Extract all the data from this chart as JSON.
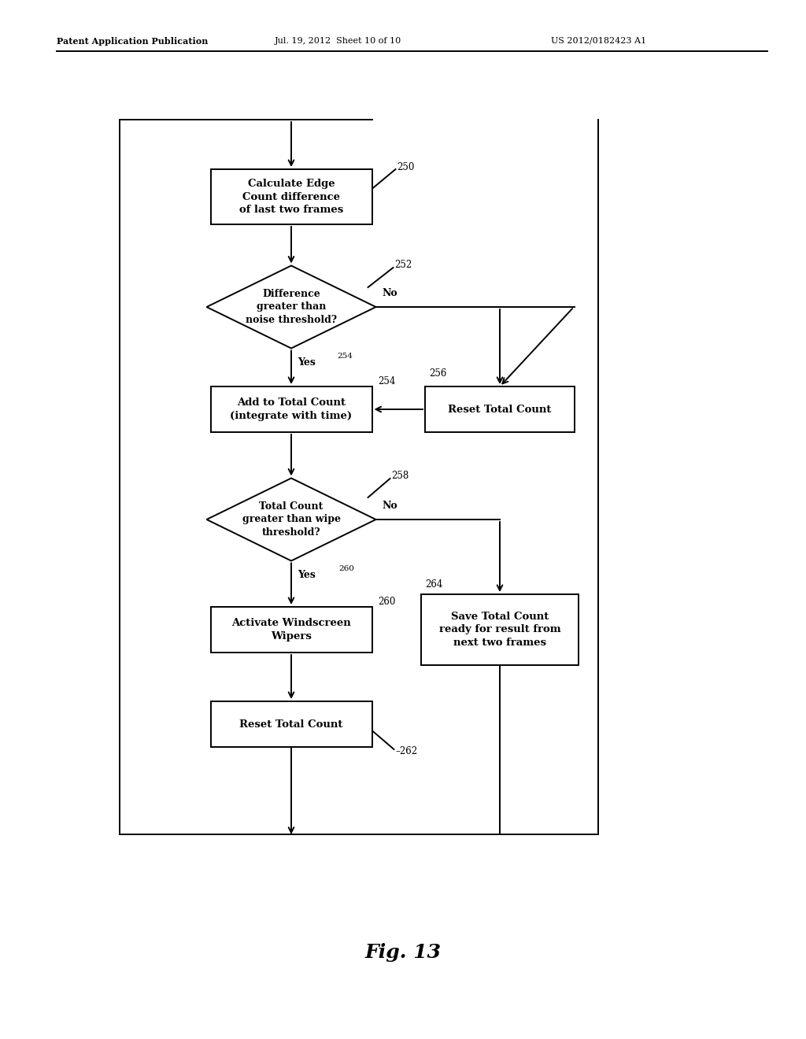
{
  "bg_color": "#ffffff",
  "header_left": "Patent Application Publication",
  "header_mid": "Jul. 19, 2012  Sheet 10 of 10",
  "header_right": "US 2012/0182423 A1",
  "fig_label": "Fig. 13",
  "lw": 1.4,
  "font_size_box": 9.5,
  "font_size_ref": 8.5,
  "font_size_label": 9.0,
  "font_size_header": 8.0,
  "font_size_fig": 18
}
